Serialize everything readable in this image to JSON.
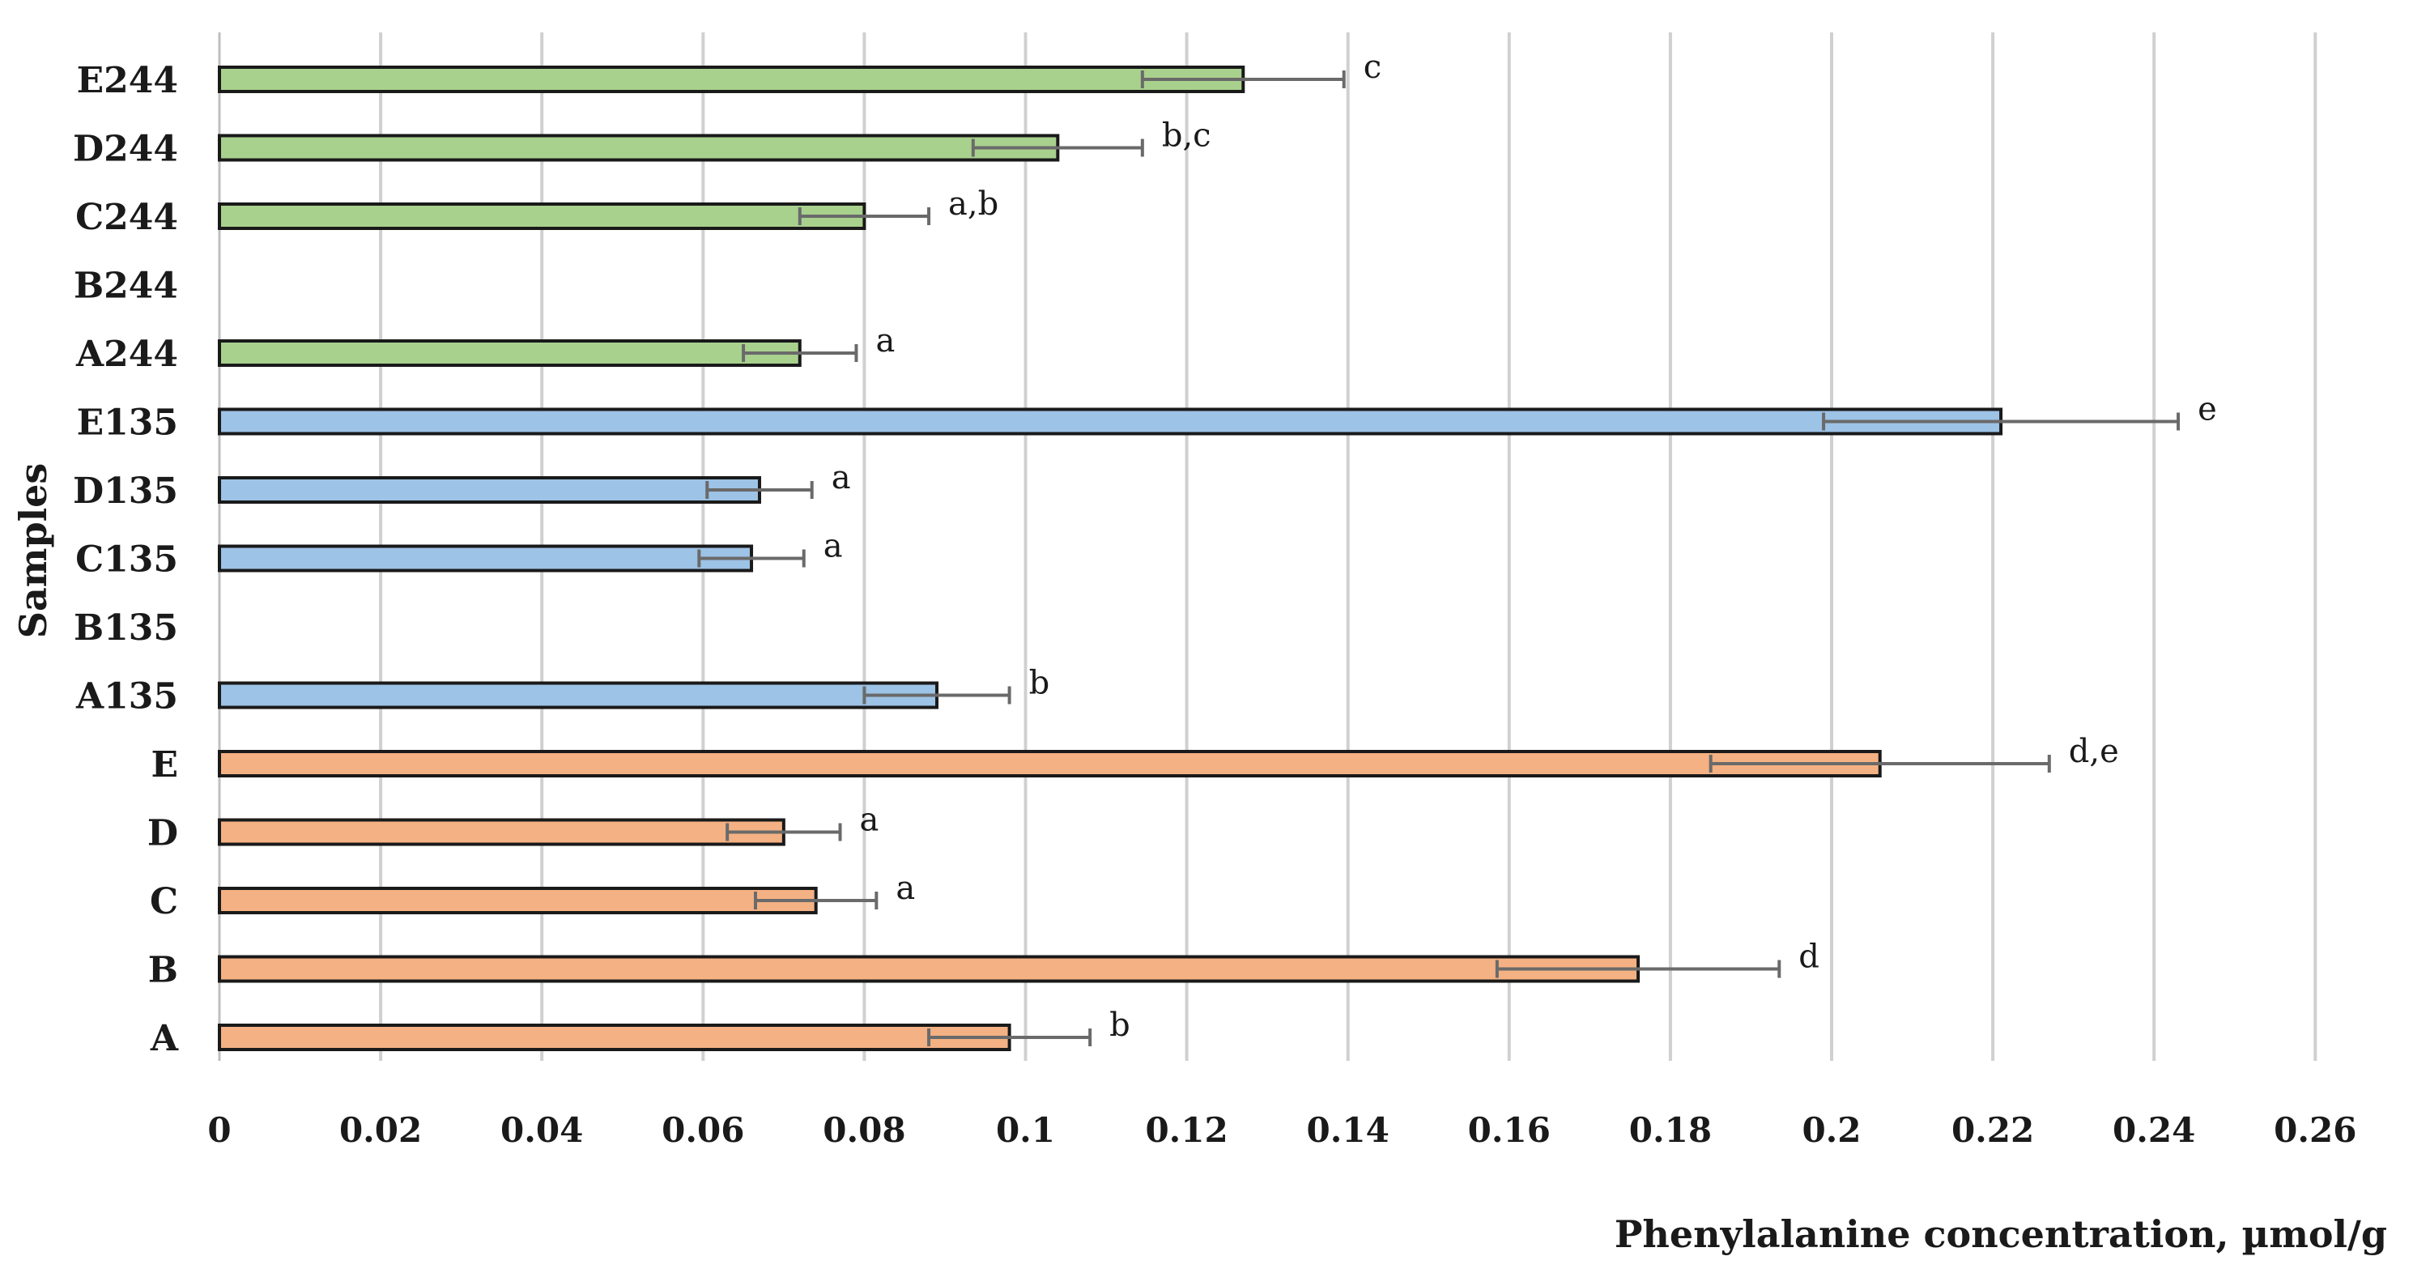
{
  "chart_data": {
    "type": "bar",
    "orientation": "horizontal",
    "title": "",
    "xlabel": "Phenylalanine concentration, µmol/g",
    "ylabel": "Samples",
    "xlim": [
      0,
      0.26
    ],
    "x_ticks": [
      "0",
      "0.02",
      "0.04",
      "0.06",
      "0.08",
      "0.1",
      "0.12",
      "0.14",
      "0.16",
      "0.18",
      "0.2",
      "0.22",
      "0.24",
      "0.26"
    ],
    "x_tick_values": [
      0,
      0.02,
      0.04,
      0.06,
      0.08,
      0.1,
      0.12,
      0.14,
      0.16,
      0.18,
      0.2,
      0.22,
      0.24,
      0.26
    ],
    "grid": "vertical",
    "colors": {
      "244": "#a9d18e",
      "135": "#9dc3e6",
      "base": "#f4b183"
    },
    "bars": [
      {
        "category": "E244",
        "value": 0.127,
        "error": 0.0125,
        "label": "c",
        "group": "244"
      },
      {
        "category": "D244",
        "value": 0.104,
        "error": 0.0105,
        "label": "b,c",
        "group": "244"
      },
      {
        "category": "C244",
        "value": 0.08,
        "error": 0.008,
        "label": "a,b",
        "group": "244"
      },
      {
        "category": "B244",
        "value": null,
        "error": null,
        "label": "",
        "group": "244"
      },
      {
        "category": "A244",
        "value": 0.072,
        "error": 0.007,
        "label": "a",
        "group": "244"
      },
      {
        "category": "E135",
        "value": 0.221,
        "error": 0.022,
        "label": "e",
        "group": "135"
      },
      {
        "category": "D135",
        "value": 0.067,
        "error": 0.0065,
        "label": "a",
        "group": "135"
      },
      {
        "category": "C135",
        "value": 0.066,
        "error": 0.0065,
        "label": "a",
        "group": "135"
      },
      {
        "category": "B135",
        "value": null,
        "error": null,
        "label": "",
        "group": "135"
      },
      {
        "category": "A135",
        "value": 0.089,
        "error": 0.009,
        "label": "b",
        "group": "135"
      },
      {
        "category": "E",
        "value": 0.206,
        "error": 0.021,
        "label": "d,e",
        "group": "base"
      },
      {
        "category": "D",
        "value": 0.07,
        "error": 0.007,
        "label": "a",
        "group": "base"
      },
      {
        "category": "C",
        "value": 0.074,
        "error": 0.0075,
        "label": "a",
        "group": "base"
      },
      {
        "category": "B",
        "value": 0.176,
        "error": 0.0175,
        "label": "d",
        "group": "base"
      },
      {
        "category": "A",
        "value": 0.098,
        "error": 0.01,
        "label": "b",
        "group": "base"
      }
    ]
  }
}
